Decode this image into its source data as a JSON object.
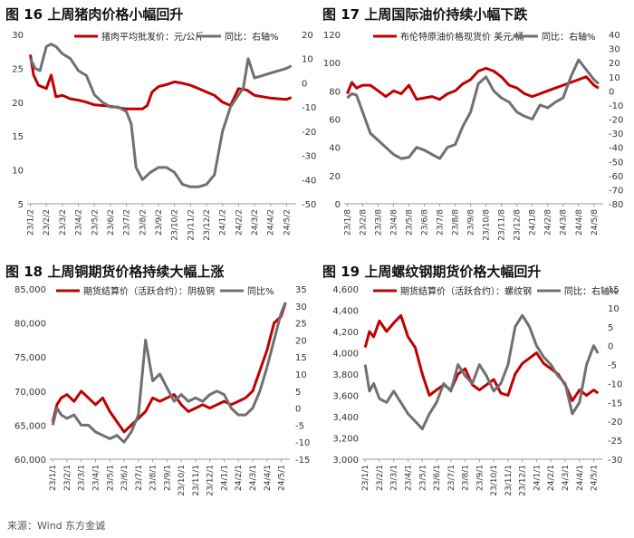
{
  "source": "来源：Wind 东方金诚",
  "chart_data": [
    {
      "type": "line",
      "title": "图 16  上周猪肉价格小幅回升",
      "x_ticks": [
        "23/1/2",
        "23/2/2",
        "23/3/2",
        "23/4/2",
        "23/5/2",
        "23/6/2",
        "23/7/2",
        "23/8/2",
        "23/9/2",
        "23/10/2",
        "23/11/2",
        "23/12/2",
        "24/1/2",
        "24/2/2",
        "24/3/2",
        "24/4/2",
        "24/5/2"
      ],
      "left_axis": {
        "ylim": [
          5,
          30
        ],
        "ticks": [
          "5",
          "10",
          "15",
          "20",
          "25",
          "30"
        ]
      },
      "right_axis": {
        "ylim": [
          -50,
          20
        ],
        "ticks": [
          "-50",
          "-40",
          "-30",
          "-20",
          "-10",
          "0",
          "10",
          "20"
        ]
      },
      "series": [
        {
          "name": "猪肉平均批发价：元/公斤",
          "axis": "left",
          "color": "#C00000",
          "x": [
            0,
            0.2,
            0.5,
            1,
            1.3,
            1.6,
            2,
            2.5,
            3,
            3.5,
            4,
            4.5,
            5,
            5.5,
            6,
            6.5,
            7,
            7.3,
            7.6,
            8,
            8.5,
            9,
            9.5,
            10,
            10.5,
            11,
            11.5,
            12,
            12.5,
            13,
            13.5,
            14,
            14.5,
            15,
            15.5,
            16,
            16.3
          ],
          "values": [
            27.0,
            24.0,
            22.5,
            22.0,
            24.0,
            20.8,
            21.0,
            20.5,
            20.3,
            20.0,
            19.6,
            19.5,
            19.4,
            19.2,
            19.0,
            19.0,
            19.0,
            19.5,
            21.5,
            22.3,
            22.6,
            23.0,
            22.8,
            22.5,
            22.0,
            21.5,
            21.0,
            20.0,
            19.5,
            22.0,
            21.8,
            21.0,
            20.8,
            20.6,
            20.5,
            20.4,
            20.7
          ]
        },
        {
          "name": "同比：右轴%",
          "axis": "right",
          "color": "#707070",
          "x": [
            0,
            0.3,
            0.6,
            1,
            1.3,
            1.6,
            2,
            2.5,
            3,
            3.5,
            4,
            4.5,
            5,
            5.5,
            6,
            6.3,
            6.6,
            7,
            7.5,
            8,
            8.5,
            9,
            9.5,
            10,
            10.5,
            11,
            11.5,
            12,
            12.5,
            13,
            13.3,
            13.6,
            14,
            14.5,
            15,
            15.5,
            16,
            16.3
          ],
          "values": [
            10,
            6,
            5,
            15,
            16,
            15,
            12,
            10,
            5,
            3,
            -5,
            -8,
            -10,
            -10,
            -12,
            -17,
            -35,
            -40,
            -37,
            -35,
            -35,
            -37,
            -42,
            -43,
            -43,
            -42,
            -38,
            -20,
            -10,
            -5,
            -2,
            10,
            2,
            3,
            4,
            5,
            6,
            7
          ]
        }
      ]
    },
    {
      "type": "line",
      "title": "图 17  上周国际油价持续小幅下跌",
      "x_ticks": [
        "23/1/8",
        "23/2/8",
        "23/3/8",
        "23/4/8",
        "23/5/8",
        "23/6/8",
        "23/7/8",
        "23/8/8",
        "23/9/8",
        "23/10/8",
        "23/11/8",
        "23/12/8",
        "24/1/8",
        "24/2/8",
        "24/3/8",
        "24/4/8",
        "24/5/8"
      ],
      "left_axis": {
        "ylim": [
          0,
          120
        ],
        "ticks": [
          "0",
          "20",
          "40",
          "60",
          "80",
          "100",
          "120"
        ]
      },
      "right_axis": {
        "ylim": [
          -80,
          40
        ],
        "ticks": [
          "-80",
          "-70",
          "-60",
          "-50",
          "-40",
          "-30",
          "-20",
          "-10",
          "0",
          "10",
          "20",
          "30",
          "40"
        ]
      },
      "series": [
        {
          "name": "布伦特原油价格现货价 美元/桶",
          "axis": "left",
          "color": "#C00000",
          "x": [
            0,
            0.3,
            0.6,
            1,
            1.5,
            2,
            2.5,
            3,
            3.5,
            4,
            4.5,
            5,
            5.5,
            6,
            6.5,
            7,
            7.5,
            8,
            8.5,
            9,
            9.5,
            10,
            10.5,
            11,
            11.5,
            12,
            12.5,
            13,
            13.5,
            14,
            14.5,
            15,
            15.5,
            16,
            16.3
          ],
          "values": [
            78,
            86,
            82,
            84,
            84,
            80,
            76,
            80,
            78,
            84,
            74,
            75,
            76,
            74,
            78,
            80,
            85,
            88,
            94,
            96,
            94,
            90,
            84,
            82,
            78,
            76,
            78,
            80,
            82,
            84,
            86,
            88,
            90,
            84,
            82
          ]
        },
        {
          "name": "同比：右轴%",
          "axis": "right",
          "color": "#707070",
          "x": [
            0,
            0.3,
            0.6,
            1,
            1.5,
            2,
            2.5,
            3,
            3.5,
            4,
            4.5,
            5,
            5.5,
            6,
            6.5,
            7,
            7.5,
            8,
            8.5,
            9,
            9.5,
            10,
            10.5,
            11,
            11.5,
            12,
            12.5,
            13,
            13.5,
            14,
            14.5,
            15,
            15.5,
            16,
            16.3
          ],
          "values": [
            -5,
            -2,
            -3,
            -15,
            -30,
            -35,
            -40,
            -45,
            -48,
            -47,
            -40,
            -42,
            -45,
            -48,
            -40,
            -38,
            -25,
            -15,
            5,
            10,
            0,
            -5,
            -8,
            -15,
            -18,
            -20,
            -10,
            -12,
            -8,
            -5,
            10,
            22,
            15,
            8,
            5
          ]
        }
      ]
    },
    {
      "type": "line",
      "title": "图 18  上周铜期货价格持续大幅上涨",
      "x_ticks": [
        "23/1/1",
        "23/2/1",
        "23/3/1",
        "23/4/1",
        "23/5/1",
        "23/6/1",
        "23/7/1",
        "23/8/1",
        "23/9/1",
        "23/10/1",
        "23/11/1",
        "23/12/1",
        "24/1/1",
        "24/2/1",
        "24/3/1",
        "24/4/1",
        "24/5/1"
      ],
      "left_axis": {
        "ylim": [
          60000,
          85000
        ],
        "ticks": [
          "60,000",
          "65,000",
          "70,000",
          "75,000",
          "80,000",
          "85,000"
        ]
      },
      "right_axis": {
        "ylim": [
          -15,
          35
        ],
        "ticks": [
          "-15",
          "-10",
          "-5",
          "0",
          "5",
          "10",
          "15",
          "20",
          "25",
          "30",
          "35"
        ]
      },
      "series": [
        {
          "name": "期货结算价（活跃合约）：阴极铜",
          "axis": "left",
          "color": "#C00000",
          "x": [
            0,
            0.3,
            0.6,
            1,
            1.5,
            2,
            2.5,
            3,
            3.5,
            4,
            4.5,
            5,
            5.5,
            6,
            6.5,
            7,
            7.5,
            8,
            8.5,
            9,
            9.5,
            10,
            10.5,
            11,
            11.5,
            12,
            12.5,
            13,
            13.5,
            14,
            14.5,
            15,
            15.5,
            16,
            16.3
          ],
          "values": [
            65500,
            68000,
            69000,
            69500,
            68500,
            70000,
            69000,
            68000,
            69000,
            67000,
            65500,
            64000,
            65000,
            66000,
            67000,
            69000,
            68500,
            69000,
            69500,
            68000,
            67000,
            67500,
            68000,
            67500,
            68000,
            68500,
            68000,
            68500,
            69000,
            70000,
            73000,
            76000,
            80000,
            81000,
            83000
          ]
        },
        {
          "name": "同比%",
          "axis": "right",
          "color": "#707070",
          "x": [
            0,
            0.3,
            0.6,
            1,
            1.5,
            2,
            2.5,
            3,
            3.5,
            4,
            4.5,
            5,
            5.5,
            6,
            6.5,
            7,
            7.5,
            8,
            8.5,
            9,
            9.5,
            10,
            10.5,
            11,
            11.5,
            12,
            12.5,
            13,
            13.5,
            14,
            14.5,
            15,
            15.5,
            16,
            16.3
          ],
          "values": [
            -5,
            0,
            -2,
            -3,
            -2,
            -5,
            -5,
            -7,
            -8,
            -9,
            -8,
            -10,
            -7,
            -2,
            20,
            8,
            10,
            6,
            2,
            4,
            2,
            3,
            2,
            4,
            5,
            4,
            0,
            -2,
            -2,
            0,
            5,
            12,
            20,
            28,
            31
          ]
        }
      ]
    },
    {
      "type": "line",
      "title": "图 19  上周螺纹钢期货价格大幅回升",
      "x_ticks": [
        "23/1/1",
        "23/2/1",
        "23/3/1",
        "23/4/1",
        "23/5/1",
        "23/6/1",
        "23/7/1",
        "23/8/1",
        "23/9/1",
        "23/10/1",
        "23/11/1",
        "23/12/1",
        "24/1/1",
        "24/2/1",
        "24/3/1",
        "24/4/1",
        "24/5/1"
      ],
      "left_axis": {
        "ylim": [
          3000,
          4600
        ],
        "ticks": [
          "3,000",
          "3,200",
          "3,400",
          "3,600",
          "3,800",
          "4,000",
          "4,200",
          "4,400",
          "4,600"
        ]
      },
      "right_axis": {
        "ylim": [
          -30,
          15
        ],
        "ticks": [
          "-30",
          "-25",
          "-20",
          "-15",
          "-10",
          "-5",
          "0",
          "5",
          "10",
          "15"
        ]
      },
      "series": [
        {
          "name": "期货结算价（活跃合约）：螺纹钢",
          "axis": "left",
          "color": "#C00000",
          "x": [
            0,
            0.3,
            0.6,
            1,
            1.5,
            2,
            2.5,
            3,
            3.5,
            4,
            4.5,
            5,
            5.5,
            6,
            6.5,
            7,
            7.5,
            8,
            8.5,
            9,
            9.5,
            10,
            10.5,
            11,
            11.5,
            12,
            12.5,
            13,
            13.5,
            14,
            14.5,
            15,
            15.5,
            16,
            16.3
          ],
          "values": [
            4050,
            4200,
            4150,
            4300,
            4200,
            4280,
            4350,
            4150,
            4050,
            3800,
            3600,
            3650,
            3700,
            3650,
            3800,
            3850,
            3700,
            3650,
            3700,
            3750,
            3620,
            3600,
            3800,
            3900,
            3950,
            4000,
            3900,
            3850,
            3800,
            3700,
            3550,
            3650,
            3600,
            3650,
            3620
          ]
        },
        {
          "name": "同比：右轴%",
          "axis": "right",
          "color": "#707070",
          "x": [
            0,
            0.3,
            0.6,
            1,
            1.5,
            2,
            2.5,
            3,
            3.5,
            4,
            4.5,
            5,
            5.5,
            6,
            6.5,
            7,
            7.5,
            8,
            8.5,
            9,
            9.5,
            10,
            10.5,
            11,
            11.5,
            12,
            12.5,
            13,
            13.5,
            14,
            14.5,
            15,
            15.5,
            16,
            16.3
          ],
          "values": [
            -5,
            -12,
            -10,
            -14,
            -15,
            -12,
            -15,
            -18,
            -20,
            -22,
            -18,
            -15,
            -10,
            -12,
            -5,
            -8,
            -10,
            -5,
            -8,
            -12,
            -10,
            -5,
            5,
            8,
            5,
            0,
            -3,
            -5,
            -8,
            -10,
            -18,
            -15,
            -5,
            0,
            -2
          ]
        }
      ]
    }
  ]
}
